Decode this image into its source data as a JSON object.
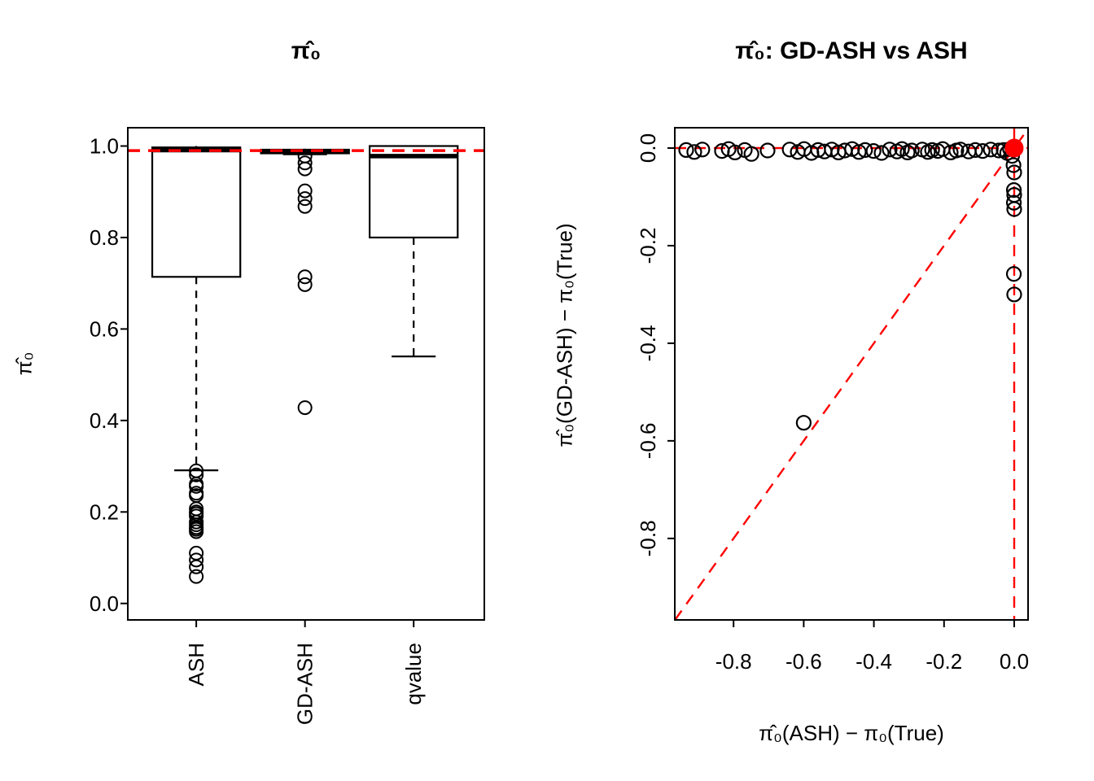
{
  "figure": {
    "background": "#FFFFFF",
    "stroke_color": "#000000",
    "reference_color": "#FF0000"
  },
  "chart_data": [
    {
      "type": "boxplot",
      "title": "π̂₀",
      "ylab": "π̂₀",
      "categories": [
        "ASH",
        "GD-ASH",
        "qvalue"
      ],
      "xlim": [
        0.37,
        3.65
      ],
      "ylim": [
        -0.036,
        1.04
      ],
      "box_width": 0.81,
      "yticks": [
        {
          "v": 0.0,
          "label": "0.0"
        },
        {
          "v": 0.2,
          "label": "0.2"
        },
        {
          "v": 0.4,
          "label": "0.4"
        },
        {
          "v": 0.6,
          "label": "0.6"
        },
        {
          "v": 0.8,
          "label": "0.8"
        },
        {
          "v": 1.0,
          "label": "1.0"
        }
      ],
      "boxes": [
        {
          "label": "ASH",
          "center": 1,
          "q1": 0.714,
          "median": 0.991,
          "q3": 0.997,
          "whisker_low": 0.291,
          "whisker_high": 1.0,
          "outliers": [
            0.29,
            0.281,
            0.261,
            0.256,
            0.241,
            0.236,
            0.207,
            0.2,
            0.196,
            0.191,
            0.178,
            0.172,
            0.166,
            0.162,
            0.157,
            0.11,
            0.095,
            0.08,
            0.059
          ]
        },
        {
          "label": "GD-ASH",
          "center": 2,
          "q1": 0.984,
          "median": 0.988,
          "q3": 0.992,
          "whisker_low": 0.982,
          "whisker_high": 0.994,
          "outliers": [
            0.978,
            0.963,
            0.95,
            0.902,
            0.885,
            0.868,
            0.714,
            0.697,
            0.428
          ]
        },
        {
          "label": "qvalue",
          "center": 3,
          "q1": 0.8,
          "median": 0.978,
          "q3": 1.0,
          "whisker_low": 0.54,
          "whisker_high": 1.0,
          "outliers": []
        }
      ],
      "ref_line": {
        "y": 0.99,
        "color": "#FF0000",
        "style": "dashed"
      }
    },
    {
      "type": "scatter",
      "title": "π̂₀: GD-ASH vs ASH",
      "xlab": "π̂₀(ASH) − π₀(True)",
      "ylab": "π̂₀(GD-ASH) − π₀(True)",
      "xlim": [
        -0.9675,
        0.0395
      ],
      "ylim": [
        -0.967,
        0.0417
      ],
      "xticks": [
        {
          "v": -0.8,
          "label": "-0.8"
        },
        {
          "v": -0.6,
          "label": "-0.6"
        },
        {
          "v": -0.4,
          "label": "-0.4"
        },
        {
          "v": -0.2,
          "label": "-0.2"
        },
        {
          "v": 0.0,
          "label": "0.0"
        }
      ],
      "yticks": [
        {
          "v": 0.0,
          "label": "0.0"
        },
        {
          "v": -0.2,
          "label": "-0.2"
        },
        {
          "v": -0.4,
          "label": "-0.4"
        },
        {
          "v": -0.6,
          "label": "-0.6"
        },
        {
          "v": -0.8,
          "label": "-0.8"
        }
      ],
      "points": [
        [
          -0.935,
          -0.004
        ],
        [
          -0.912,
          -0.008
        ],
        [
          -0.889,
          -0.003
        ],
        [
          -0.833,
          -0.006
        ],
        [
          -0.814,
          -0.002
        ],
        [
          -0.796,
          -0.009
        ],
        [
          -0.768,
          -0.004
        ],
        [
          -0.749,
          -0.012
        ],
        [
          -0.703,
          -0.005
        ],
        [
          -0.64,
          -0.003
        ],
        [
          -0.617,
          -0.008
        ],
        [
          -0.599,
          -0.002
        ],
        [
          -0.578,
          -0.01
        ],
        [
          -0.559,
          -0.004
        ],
        [
          -0.541,
          -0.007
        ],
        [
          -0.52,
          -0.003
        ],
        [
          -0.501,
          -0.009
        ],
        [
          -0.483,
          -0.005
        ],
        [
          -0.462,
          -0.002
        ],
        [
          -0.443,
          -0.008
        ],
        [
          -0.425,
          -0.004
        ],
        [
          -0.401,
          -0.006
        ],
        [
          -0.378,
          -0.01
        ],
        [
          -0.355,
          -0.003
        ],
        [
          -0.334,
          -0.007
        ],
        [
          -0.32,
          -0.002
        ],
        [
          -0.304,
          -0.009
        ],
        [
          -0.292,
          -0.005
        ],
        [
          -0.262,
          -0.003
        ],
        [
          -0.246,
          -0.008
        ],
        [
          -0.234,
          -0.004
        ],
        [
          -0.218,
          -0.006
        ],
        [
          -0.204,
          -0.002
        ],
        [
          -0.181,
          -0.009
        ],
        [
          -0.165,
          -0.005
        ],
        [
          -0.153,
          -0.003
        ],
        [
          -0.13,
          -0.007
        ],
        [
          -0.111,
          -0.004
        ],
        [
          -0.09,
          -0.006
        ],
        [
          -0.067,
          -0.003
        ],
        [
          -0.044,
          -0.005
        ],
        [
          -0.03,
          -0.004
        ],
        [
          -0.02,
          -0.01
        ],
        [
          -0.012,
          -0.002
        ],
        [
          -0.006,
          -0.016
        ],
        [
          -0.004,
          0.0
        ],
        [
          -0.002,
          -0.035
        ],
        [
          0.0,
          -0.05
        ],
        [
          -0.001,
          -0.086
        ],
        [
          0.0,
          -0.096
        ],
        [
          -0.001,
          -0.112
        ],
        [
          0.0,
          -0.125
        ],
        [
          -0.001,
          -0.258
        ],
        [
          0.0,
          -0.3
        ],
        [
          -0.6,
          -0.563
        ]
      ],
      "highlight_point": {
        "x": 0.0,
        "y": 0.0,
        "color": "#FF0000"
      },
      "ref_lines": [
        {
          "kind": "horizontal",
          "y": 0.0
        },
        {
          "kind": "vertical",
          "x": 0.0
        },
        {
          "kind": "diagonal",
          "intercept": 0.0,
          "slope": 1.0
        }
      ]
    }
  ]
}
